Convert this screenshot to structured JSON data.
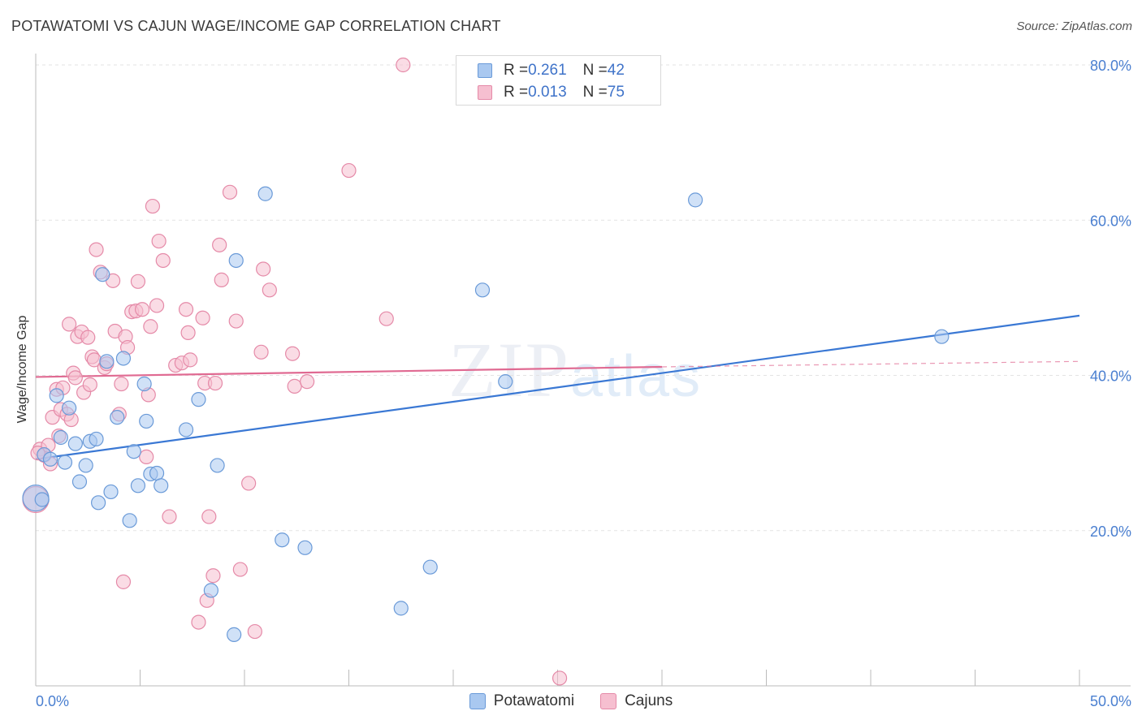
{
  "header": {
    "title": "POTAWATOMI VS CAJUN WAGE/INCOME GAP CORRELATION CHART",
    "source": "Source: ZipAtlas.com"
  },
  "watermark": {
    "part1": "ZIP",
    "part2": "atlas"
  },
  "colors": {
    "potawatomi_fill": "#a9c8f0",
    "potawatomi_stroke": "#6a9ad8",
    "potawatomi_line": "#3a78d4",
    "cajun_fill": "#f6bfd0",
    "cajun_stroke": "#e58aa8",
    "cajun_line": "#e06a92",
    "tick_text": "#4a7fd0",
    "grid": "#e3e3e3"
  },
  "legend_top": {
    "rows": [
      {
        "r_label": "R = ",
        "r_value": "0.261",
        "n_label": "N = ",
        "n_value": "42"
      },
      {
        "r_label": "R = ",
        "r_value": "0.013",
        "n_label": "N = ",
        "n_value": "75"
      }
    ]
  },
  "legend_bottom": {
    "items": [
      "Potawatomi",
      "Cajuns"
    ]
  },
  "chart_data": {
    "type": "scatter",
    "title": "POTAWATOMI VS CAJUN WAGE/INCOME GAP CORRELATION CHART",
    "xlabel": "",
    "ylabel": "Wage/Income Gap",
    "xlim": [
      0,
      50
    ],
    "ylim": [
      0,
      80
    ],
    "x_tick_labels": [
      "0.0%",
      "50.0%"
    ],
    "y_ticks": [
      20,
      40,
      60,
      80
    ],
    "y_tick_labels": [
      "20.0%",
      "40.0%",
      "60.0%",
      "80.0%"
    ],
    "grid": true,
    "legend_position": "top-center",
    "series": [
      {
        "name": "Potawatomi",
        "r": 0.261,
        "n": 42,
        "trend": {
          "x0": 0,
          "y0": 29.2,
          "x1": 50,
          "y1": 47.7
        },
        "points": [
          [
            0,
            24.2
          ],
          [
            0.4,
            29.8
          ],
          [
            0.7,
            29.2
          ],
          [
            1.0,
            37.4
          ],
          [
            1.2,
            32.0
          ],
          [
            1.4,
            28.8
          ],
          [
            1.6,
            35.8
          ],
          [
            1.9,
            31.2
          ],
          [
            2.1,
            26.3
          ],
          [
            2.4,
            28.4
          ],
          [
            2.6,
            31.5
          ],
          [
            2.9,
            31.8
          ],
          [
            3.0,
            23.6
          ],
          [
            3.2,
            53.0
          ],
          [
            3.4,
            41.8
          ],
          [
            3.6,
            25.0
          ],
          [
            3.9,
            34.6
          ],
          [
            4.2,
            42.2
          ],
          [
            4.5,
            21.3
          ],
          [
            4.7,
            30.2
          ],
          [
            4.9,
            25.8
          ],
          [
            5.2,
            38.9
          ],
          [
            5.3,
            34.1
          ],
          [
            5.5,
            27.3
          ],
          [
            5.8,
            27.4
          ],
          [
            6.0,
            25.8
          ],
          [
            7.2,
            33.0
          ],
          [
            7.8,
            36.9
          ],
          [
            8.4,
            12.3
          ],
          [
            8.7,
            28.4
          ],
          [
            9.5,
            6.6
          ],
          [
            9.6,
            54.8
          ],
          [
            11.0,
            63.4
          ],
          [
            11.8,
            18.8
          ],
          [
            12.9,
            17.8
          ],
          [
            17.5,
            10.0
          ],
          [
            18.9,
            15.3
          ],
          [
            21.4,
            51.0
          ],
          [
            22.5,
            39.2
          ],
          [
            31.6,
            62.6
          ],
          [
            43.4,
            45.0
          ],
          [
            0.3,
            24.0
          ]
        ]
      },
      {
        "name": "Cajuns",
        "r": 0.013,
        "n": 75,
        "trend": {
          "x0": 0,
          "y0": 39.8,
          "x1": 30,
          "y1": 41.1
        },
        "trend_dashed": {
          "x0": 30,
          "y0": 41.1,
          "x1": 50,
          "y1": 41.8
        },
        "points": [
          [
            0,
            24.0
          ],
          [
            0.2,
            30.5
          ],
          [
            0.4,
            29.7
          ],
          [
            0.6,
            31.0
          ],
          [
            0.7,
            28.6
          ],
          [
            0.8,
            34.6
          ],
          [
            1.0,
            38.2
          ],
          [
            1.1,
            32.2
          ],
          [
            1.2,
            35.6
          ],
          [
            1.3,
            38.4
          ],
          [
            1.5,
            35.0
          ],
          [
            1.6,
            46.6
          ],
          [
            1.7,
            34.3
          ],
          [
            1.8,
            40.3
          ],
          [
            1.9,
            39.7
          ],
          [
            2.0,
            45.0
          ],
          [
            2.2,
            45.6
          ],
          [
            2.3,
            37.8
          ],
          [
            2.5,
            44.9
          ],
          [
            2.6,
            38.8
          ],
          [
            2.7,
            42.4
          ],
          [
            2.8,
            42.0
          ],
          [
            2.9,
            56.2
          ],
          [
            3.1,
            53.3
          ],
          [
            3.3,
            41.0
          ],
          [
            3.4,
            41.5
          ],
          [
            3.7,
            52.2
          ],
          [
            3.8,
            45.7
          ],
          [
            4.0,
            35.0
          ],
          [
            4.1,
            38.9
          ],
          [
            4.2,
            13.4
          ],
          [
            4.3,
            45.0
          ],
          [
            4.4,
            43.6
          ],
          [
            4.6,
            48.2
          ],
          [
            4.8,
            48.3
          ],
          [
            4.9,
            52.1
          ],
          [
            5.1,
            48.5
          ],
          [
            5.3,
            29.5
          ],
          [
            5.4,
            37.5
          ],
          [
            5.5,
            46.3
          ],
          [
            5.6,
            61.8
          ],
          [
            5.8,
            49.0
          ],
          [
            5.9,
            57.3
          ],
          [
            6.1,
            54.8
          ],
          [
            6.4,
            21.8
          ],
          [
            6.7,
            41.3
          ],
          [
            7.0,
            41.6
          ],
          [
            7.2,
            48.5
          ],
          [
            7.3,
            45.5
          ],
          [
            7.4,
            42.0
          ],
          [
            7.8,
            8.2
          ],
          [
            8.0,
            47.4
          ],
          [
            8.1,
            39.0
          ],
          [
            8.2,
            11.0
          ],
          [
            8.3,
            21.8
          ],
          [
            8.5,
            14.2
          ],
          [
            8.6,
            39.0
          ],
          [
            8.8,
            56.8
          ],
          [
            8.9,
            52.3
          ],
          [
            9.3,
            63.6
          ],
          [
            9.6,
            47.0
          ],
          [
            9.8,
            15.0
          ],
          [
            10.2,
            26.1
          ],
          [
            10.5,
            7.0
          ],
          [
            10.8,
            43.0
          ],
          [
            10.9,
            53.7
          ],
          [
            11.2,
            51.0
          ],
          [
            12.3,
            42.8
          ],
          [
            12.4,
            38.6
          ],
          [
            13.0,
            39.2
          ],
          [
            15.0,
            66.4
          ],
          [
            16.8,
            47.3
          ],
          [
            17.6,
            80.0
          ],
          [
            25.1,
            1.0
          ],
          [
            0.1,
            30.0
          ]
        ]
      }
    ]
  }
}
